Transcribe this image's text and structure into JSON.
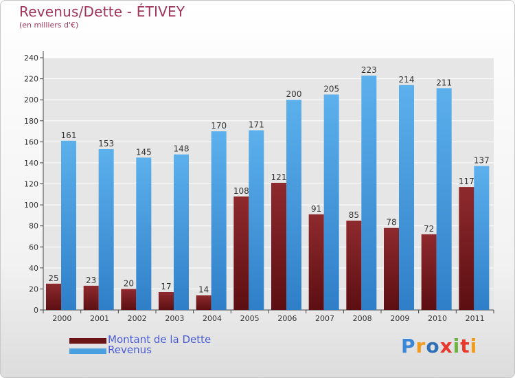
{
  "title": "Revenus/Dette - ÉTIVEY",
  "subtitle": "(en milliers d'€)",
  "logo": {
    "letters": [
      "P",
      "r",
      "o",
      "x",
      "i",
      "t",
      "i"
    ],
    "colors": [
      "#3b88d8",
      "#f29a1c",
      "#2f6fb5",
      "#e8382e",
      "#6cb33f",
      "#e8382e",
      "#f29a1c"
    ]
  },
  "chart_data": {
    "type": "bar",
    "title": "Revenus/Dette - ÉTIVEY",
    "subtitle": "(en milliers d'€)",
    "categories": [
      "2000",
      "2001",
      "2002",
      "2003",
      "2004",
      "2005",
      "2006",
      "2007",
      "2008",
      "2009",
      "2010",
      "2011"
    ],
    "series": [
      {
        "name": "Montant de la Dette",
        "color": "#7a1c20",
        "values": [
          25,
          23,
          20,
          17,
          14,
          108,
          121,
          91,
          85,
          78,
          72,
          117
        ]
      },
      {
        "name": "Revenus",
        "color": "#4a9fe0",
        "values": [
          161,
          153,
          145,
          148,
          170,
          171,
          200,
          205,
          223,
          214,
          211,
          137
        ]
      }
    ],
    "yticks": [
      0,
      20,
      40,
      60,
      80,
      100,
      120,
      140,
      160,
      180,
      200,
      220,
      240
    ],
    "ylim": [
      0,
      240
    ],
    "grid": true,
    "legend": "bottom-left"
  }
}
